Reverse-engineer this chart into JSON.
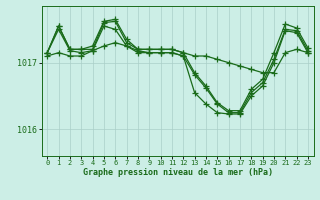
{
  "background_color": "#cceee6",
  "grid_color": "#aacfc8",
  "line_color": "#1a6b1a",
  "marker": "+",
  "markersize": 4,
  "linewidth": 0.9,
  "xlabel": "Graphe pression niveau de la mer (hPa)",
  "xlim": [
    -0.5,
    23.5
  ],
  "ylim": [
    1015.6,
    1017.85
  ],
  "yticks": [
    1016,
    1017
  ],
  "xticks": [
    0,
    1,
    2,
    3,
    4,
    5,
    6,
    7,
    8,
    9,
    10,
    11,
    12,
    13,
    14,
    15,
    16,
    17,
    18,
    19,
    20,
    21,
    22,
    23
  ],
  "series": [
    [
      1017.15,
      1017.55,
      1017.2,
      1017.2,
      1017.25,
      1017.62,
      1017.65,
      1017.35,
      1017.2,
      1017.2,
      1017.2,
      1017.2,
      1017.15,
      1017.1,
      1017.1,
      1017.05,
      1017.0,
      1016.95,
      1016.9,
      1016.85,
      1016.85,
      1017.15,
      1017.2,
      1017.15
    ],
    [
      1017.15,
      1017.55,
      1017.2,
      1017.2,
      1017.2,
      1017.6,
      1017.62,
      1017.3,
      1017.2,
      1017.2,
      1017.2,
      1017.2,
      1017.15,
      1016.85,
      1016.65,
      1016.4,
      1016.28,
      1016.28,
      1016.6,
      1016.75,
      1017.15,
      1017.58,
      1017.52,
      1017.22
    ],
    [
      1017.15,
      1017.5,
      1017.18,
      1017.15,
      1017.18,
      1017.55,
      1017.5,
      1017.25,
      1017.15,
      1017.15,
      1017.15,
      1017.15,
      1017.1,
      1016.82,
      1016.62,
      1016.38,
      1016.25,
      1016.25,
      1016.55,
      1016.7,
      1017.05,
      1017.5,
      1017.48,
      1017.18
    ],
    [
      1017.1,
      1017.15,
      1017.1,
      1017.1,
      1017.18,
      1017.25,
      1017.3,
      1017.25,
      1017.18,
      1017.15,
      1017.15,
      1017.15,
      1017.1,
      1016.55,
      1016.38,
      1016.25,
      1016.23,
      1016.23,
      1016.5,
      1016.65,
      1017.0,
      1017.48,
      1017.45,
      1017.15
    ]
  ]
}
